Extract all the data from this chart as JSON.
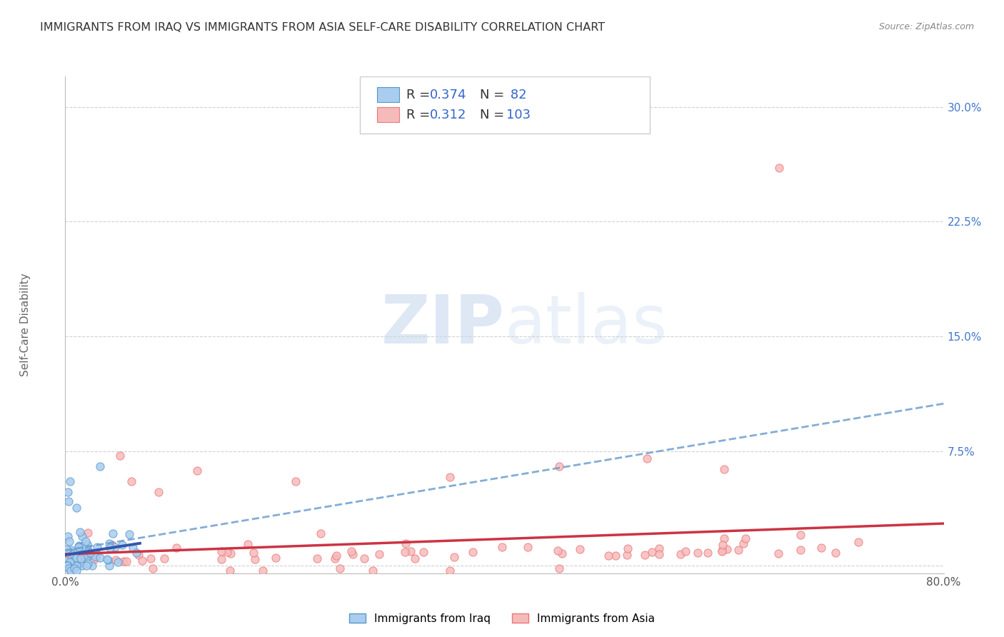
{
  "title": "IMMIGRANTS FROM IRAQ VS IMMIGRANTS FROM ASIA SELF-CARE DISABILITY CORRELATION CHART",
  "source": "Source: ZipAtlas.com",
  "ylabel": "Self-Care Disability",
  "x_min": 0.0,
  "x_max": 0.8,
  "y_min": -0.005,
  "y_max": 0.32,
  "x_ticks": [
    0.0,
    0.2,
    0.4,
    0.6,
    0.8
  ],
  "x_tick_labels": [
    "0.0%",
    "",
    "",
    "",
    "80.0%"
  ],
  "y_ticks": [
    0.0,
    0.075,
    0.15,
    0.225,
    0.3
  ],
  "y_tick_labels": [
    "",
    "7.5%",
    "15.0%",
    "22.5%",
    "30.0%"
  ],
  "series1_color_edge": "#5599cc",
  "series1_color_fill": "#aaccee",
  "series2_color_edge": "#ee7777",
  "series2_color_fill": "#f5bbbb",
  "trend1_color": "#3355aa",
  "trend2_color": "#cc3344",
  "trend1_dash_color": "#6699cc",
  "R1": 0.374,
  "N1": 82,
  "R2": 0.312,
  "N2": 103,
  "legend_label1": "Immigrants from Iraq",
  "legend_label2": "Immigrants from Asia",
  "watermark_zip": "ZIP",
  "watermark_atlas": "atlas",
  "background_color": "#ffffff",
  "plot_bg_color": "#ffffff",
  "grid_color": "#cccccc",
  "title_color": "#333333",
  "axis_label_color": "#666666",
  "tick_color_blue": "#4477cc",
  "legend_R_color": "#222222",
  "legend_val_color": "#3366cc"
}
